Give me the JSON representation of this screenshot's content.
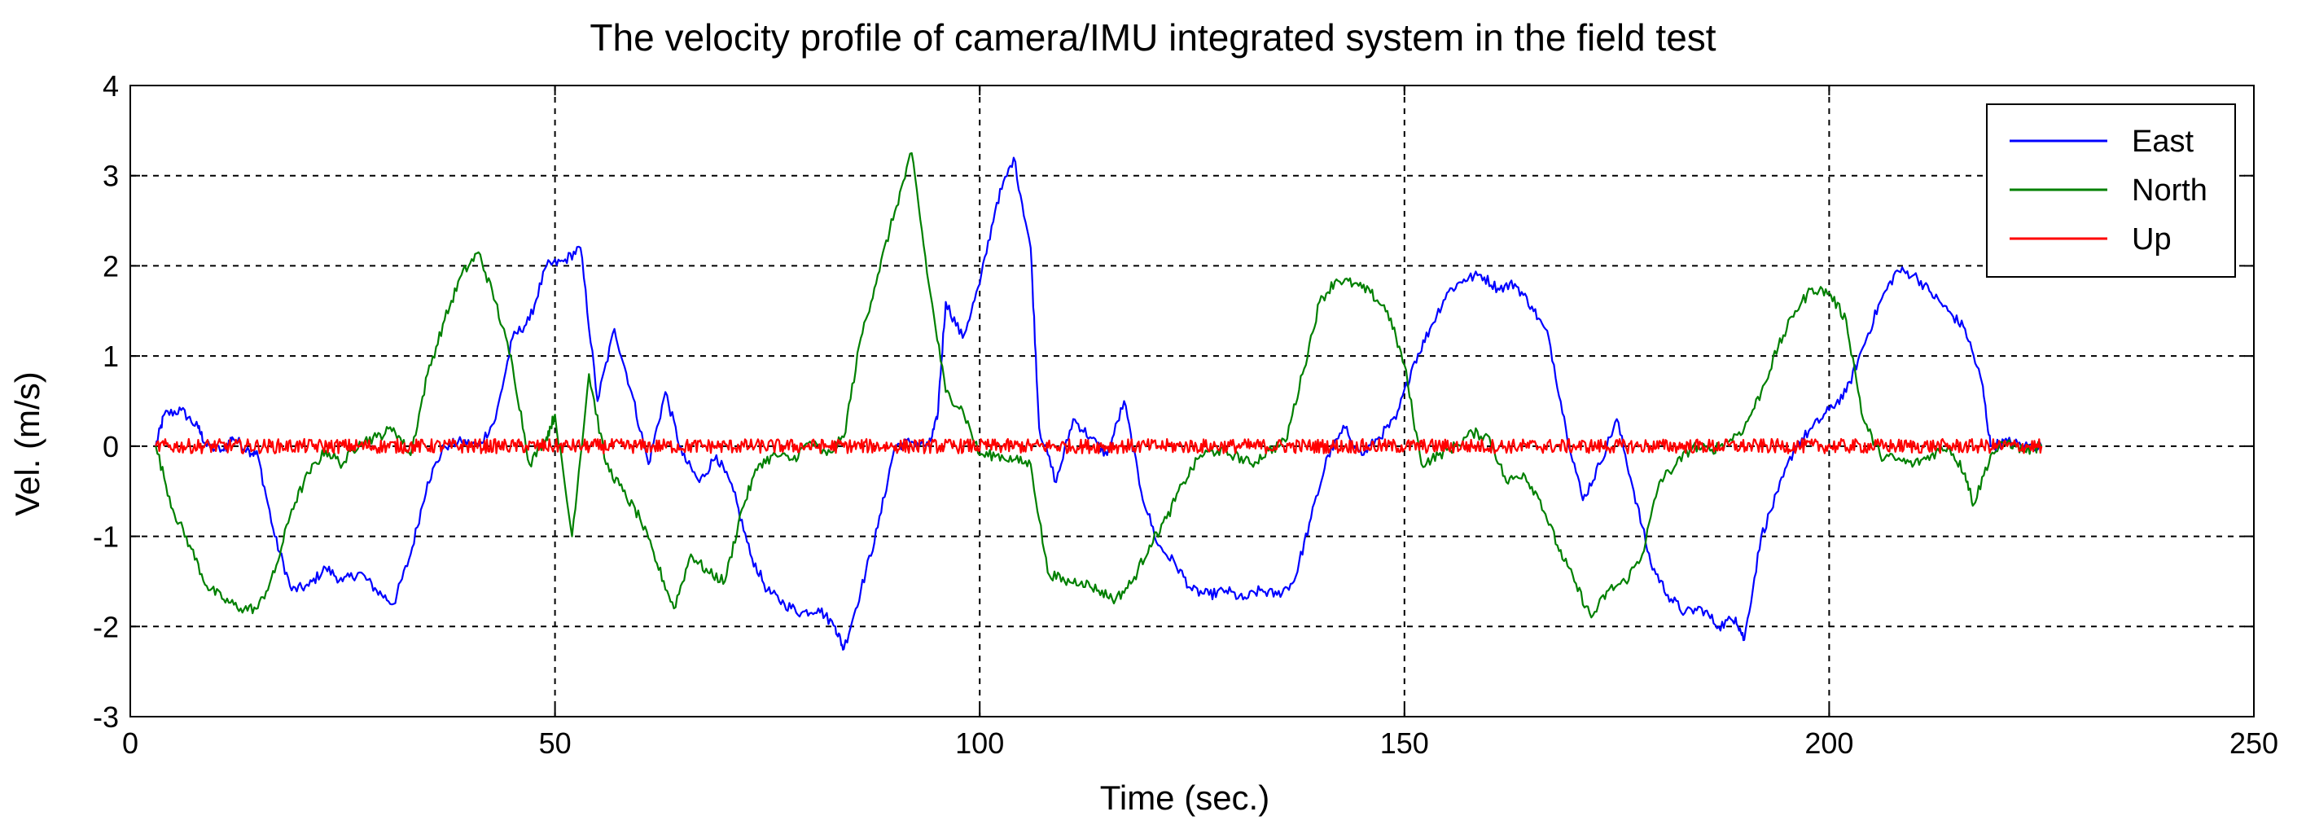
{
  "chart_data": {
    "type": "line",
    "title": "The velocity profile of camera/IMU integrated system in the field test",
    "xlabel": "Time (sec.)",
    "ylabel": "Vel. (m/s)",
    "xlim": [
      0,
      250
    ],
    "ylim": [
      -3,
      4
    ],
    "xticks": [
      0,
      50,
      100,
      150,
      200,
      250
    ],
    "yticks": [
      -3,
      -2,
      -1,
      0,
      1,
      2,
      3,
      4
    ],
    "grid": true,
    "legend_position": "top-right",
    "series": [
      {
        "name": "East",
        "color": "#0000ff",
        "points": [
          [
            3,
            0
          ],
          [
            4,
            0.35
          ],
          [
            6,
            0.4
          ],
          [
            8,
            0.2
          ],
          [
            9,
            0
          ],
          [
            11,
            -0.05
          ],
          [
            12,
            0.1
          ],
          [
            14,
            -0.05
          ],
          [
            15,
            -0.1
          ],
          [
            17,
            -1.0
          ],
          [
            19,
            -1.6
          ],
          [
            21,
            -1.55
          ],
          [
            23,
            -1.35
          ],
          [
            25,
            -1.5
          ],
          [
            27,
            -1.4
          ],
          [
            29,
            -1.6
          ],
          [
            31,
            -1.75
          ],
          [
            33,
            -1.2
          ],
          [
            35,
            -0.4
          ],
          [
            37,
            0
          ],
          [
            39,
            0.05
          ],
          [
            41,
            0
          ],
          [
            43,
            0.3
          ],
          [
            45,
            1.2
          ],
          [
            47,
            1.4
          ],
          [
            49,
            2.0
          ],
          [
            51,
            2.05
          ],
          [
            53,
            2.2
          ],
          [
            55,
            0.5
          ],
          [
            57,
            1.3
          ],
          [
            59,
            0.6
          ],
          [
            61,
            -0.2
          ],
          [
            63,
            0.6
          ],
          [
            65,
            -0.1
          ],
          [
            67,
            -0.4
          ],
          [
            69,
            -0.1
          ],
          [
            71,
            -0.5
          ],
          [
            73,
            -1.2
          ],
          [
            75,
            -1.6
          ],
          [
            77,
            -1.75
          ],
          [
            79,
            -1.85
          ],
          [
            81,
            -1.8
          ],
          [
            83,
            -2.0
          ],
          [
            84,
            -2.25
          ],
          [
            86,
            -1.6
          ],
          [
            88,
            -0.9
          ],
          [
            90,
            0
          ],
          [
            92,
            0.05
          ],
          [
            94,
            0
          ],
          [
            95,
            0.3
          ],
          [
            96,
            1.6
          ],
          [
            98,
            1.2
          ],
          [
            100,
            1.8
          ],
          [
            102,
            2.7
          ],
          [
            104,
            3.2
          ],
          [
            106,
            2.2
          ],
          [
            107,
            0.2
          ],
          [
            109,
            -0.4
          ],
          [
            111,
            0.3
          ],
          [
            113,
            0.1
          ],
          [
            115,
            -0.1
          ],
          [
            117,
            0.5
          ],
          [
            119,
            -0.5
          ],
          [
            121,
            -1.1
          ],
          [
            123,
            -1.3
          ],
          [
            125,
            -1.6
          ],
          [
            127,
            -1.65
          ],
          [
            129,
            -1.6
          ],
          [
            131,
            -1.7
          ],
          [
            133,
            -1.6
          ],
          [
            135,
            -1.65
          ],
          [
            137,
            -1.5
          ],
          [
            139,
            -0.8
          ],
          [
            141,
            -0.1
          ],
          [
            143,
            0.2
          ],
          [
            145,
            -0.1
          ],
          [
            147,
            0.1
          ],
          [
            149,
            0.3
          ],
          [
            151,
            0.9
          ],
          [
            153,
            1.3
          ],
          [
            155,
            1.7
          ],
          [
            157,
            1.85
          ],
          [
            159,
            1.9
          ],
          [
            161,
            1.75
          ],
          [
            163,
            1.8
          ],
          [
            165,
            1.55
          ],
          [
            167,
            1.2
          ],
          [
            169,
            0.2
          ],
          [
            171,
            -0.6
          ],
          [
            173,
            -0.2
          ],
          [
            175,
            0.3
          ],
          [
            177,
            -0.5
          ],
          [
            179,
            -1.3
          ],
          [
            181,
            -1.65
          ],
          [
            183,
            -1.85
          ],
          [
            185,
            -1.8
          ],
          [
            187,
            -2.0
          ],
          [
            189,
            -1.9
          ],
          [
            190,
            -2.15
          ],
          [
            192,
            -1.0
          ],
          [
            194,
            -0.5
          ],
          [
            196,
            0
          ],
          [
            198,
            0.2
          ],
          [
            200,
            0.4
          ],
          [
            202,
            0.6
          ],
          [
            204,
            1.1
          ],
          [
            206,
            1.6
          ],
          [
            208,
            1.95
          ],
          [
            210,
            1.9
          ],
          [
            212,
            1.7
          ],
          [
            214,
            1.5
          ],
          [
            216,
            1.3
          ],
          [
            218,
            0.7
          ],
          [
            219,
            0
          ],
          [
            221,
            0.05
          ],
          [
            223,
            0
          ],
          [
            225,
            0
          ]
        ]
      },
      {
        "name": "North",
        "color": "#008000",
        "points": [
          [
            3,
            0
          ],
          [
            5,
            -0.7
          ],
          [
            7,
            -1.1
          ],
          [
            9,
            -1.55
          ],
          [
            11,
            -1.7
          ],
          [
            13,
            -1.8
          ],
          [
            15,
            -1.8
          ],
          [
            17,
            -1.4
          ],
          [
            19,
            -0.7
          ],
          [
            21,
            -0.3
          ],
          [
            23,
            -0.05
          ],
          [
            25,
            -0.2
          ],
          [
            27,
            0.05
          ],
          [
            29,
            0.1
          ],
          [
            31,
            0.2
          ],
          [
            33,
            -0.1
          ],
          [
            35,
            0.8
          ],
          [
            37,
            1.4
          ],
          [
            39,
            1.9
          ],
          [
            41,
            2.15
          ],
          [
            43,
            1.6
          ],
          [
            45,
            0.9
          ],
          [
            47,
            -0.2
          ],
          [
            49,
            0.1
          ],
          [
            50,
            0.35
          ],
          [
            52,
            -1.0
          ],
          [
            54,
            0.8
          ],
          [
            56,
            -0.2
          ],
          [
            58,
            -0.5
          ],
          [
            60,
            -0.8
          ],
          [
            62,
            -1.3
          ],
          [
            64,
            -1.8
          ],
          [
            66,
            -1.2
          ],
          [
            68,
            -1.4
          ],
          [
            70,
            -1.5
          ],
          [
            72,
            -0.7
          ],
          [
            74,
            -0.2
          ],
          [
            76,
            -0.1
          ],
          [
            78,
            -0.15
          ],
          [
            80,
            0.05
          ],
          [
            82,
            -0.1
          ],
          [
            84,
            0.1
          ],
          [
            86,
            1.2
          ],
          [
            88,
            1.9
          ],
          [
            90,
            2.6
          ],
          [
            92,
            3.25
          ],
          [
            94,
            1.8
          ],
          [
            96,
            0.6
          ],
          [
            98,
            0.4
          ],
          [
            100,
            -0.1
          ],
          [
            102,
            -0.1
          ],
          [
            104,
            -0.15
          ],
          [
            106,
            -0.2
          ],
          [
            108,
            -1.4
          ],
          [
            110,
            -1.5
          ],
          [
            112,
            -1.5
          ],
          [
            114,
            -1.6
          ],
          [
            116,
            -1.7
          ],
          [
            118,
            -1.5
          ],
          [
            120,
            -1.1
          ],
          [
            122,
            -0.8
          ],
          [
            124,
            -0.4
          ],
          [
            126,
            -0.1
          ],
          [
            128,
            -0.05
          ],
          [
            130,
            -0.1
          ],
          [
            132,
            -0.2
          ],
          [
            134,
            -0.05
          ],
          [
            136,
            0.05
          ],
          [
            138,
            0.8
          ],
          [
            140,
            1.6
          ],
          [
            142,
            1.85
          ],
          [
            144,
            1.8
          ],
          [
            146,
            1.7
          ],
          [
            148,
            1.5
          ],
          [
            150,
            0.9
          ],
          [
            152,
            -0.2
          ],
          [
            154,
            -0.1
          ],
          [
            156,
            0
          ],
          [
            158,
            0.15
          ],
          [
            160,
            0.1
          ],
          [
            162,
            -0.4
          ],
          [
            164,
            -0.3
          ],
          [
            166,
            -0.6
          ],
          [
            168,
            -1.1
          ],
          [
            170,
            -1.5
          ],
          [
            172,
            -1.9
          ],
          [
            174,
            -1.6
          ],
          [
            176,
            -1.5
          ],
          [
            178,
            -1.2
          ],
          [
            180,
            -0.4
          ],
          [
            182,
            -0.2
          ],
          [
            184,
            0
          ],
          [
            186,
            -0.05
          ],
          [
            188,
            0.05
          ],
          [
            190,
            0.2
          ],
          [
            192,
            0.6
          ],
          [
            194,
            1.1
          ],
          [
            196,
            1.5
          ],
          [
            198,
            1.75
          ],
          [
            200,
            1.7
          ],
          [
            202,
            1.4
          ],
          [
            204,
            0.3
          ],
          [
            206,
            -0.1
          ],
          [
            208,
            -0.15
          ],
          [
            210,
            -0.2
          ],
          [
            212,
            -0.1
          ],
          [
            214,
            0
          ],
          [
            216,
            -0.3
          ],
          [
            217,
            -0.65
          ],
          [
            219,
            -0.1
          ],
          [
            221,
            0.05
          ],
          [
            223,
            -0.05
          ],
          [
            225,
            0
          ]
        ]
      },
      {
        "name": "Up",
        "color": "#ff0000",
        "noise_amplitude": 0.08,
        "points": [
          [
            3,
            0
          ],
          [
            225,
            0
          ]
        ]
      }
    ]
  }
}
